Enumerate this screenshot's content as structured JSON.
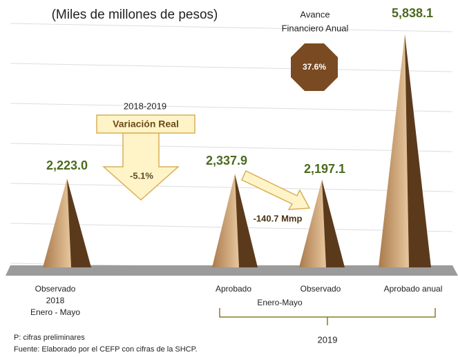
{
  "chart_data": {
    "type": "pyramid",
    "subtitle": "(Miles de millones de pesos)",
    "categories": [
      "Observado",
      "Aprobado",
      "Observado",
      "Aprobado anual"
    ],
    "values": [
      2223.0,
      2337.9,
      2197.1,
      5838.1
    ],
    "value_labels": [
      "2,223.0",
      "2,337.9",
      "2,197.1",
      "5,838.1"
    ],
    "ylim": [
      0,
      6000
    ],
    "yticks": [
      0,
      1000,
      2000,
      3000,
      4000,
      5000,
      6000
    ],
    "grid": true,
    "color_light": "#d7ae80",
    "color_dark": "#5b3a1c",
    "first_category_lines": [
      "2018",
      "Enero - Mayo"
    ],
    "group_label": "Enero-Mayo",
    "group_year": "2019",
    "avance_title": "Avance Financiero Anual",
    "avance_value": "37.6%",
    "variation_period": "2018-2019",
    "variation_title": "Variación Real",
    "variation_value": "-5.1%",
    "difference_label": "-140.7 Mmp",
    "notes": [
      "P: cifras preliminares",
      "Fuente: Elaborado por el CEFP con cifras de la SHCP."
    ]
  }
}
